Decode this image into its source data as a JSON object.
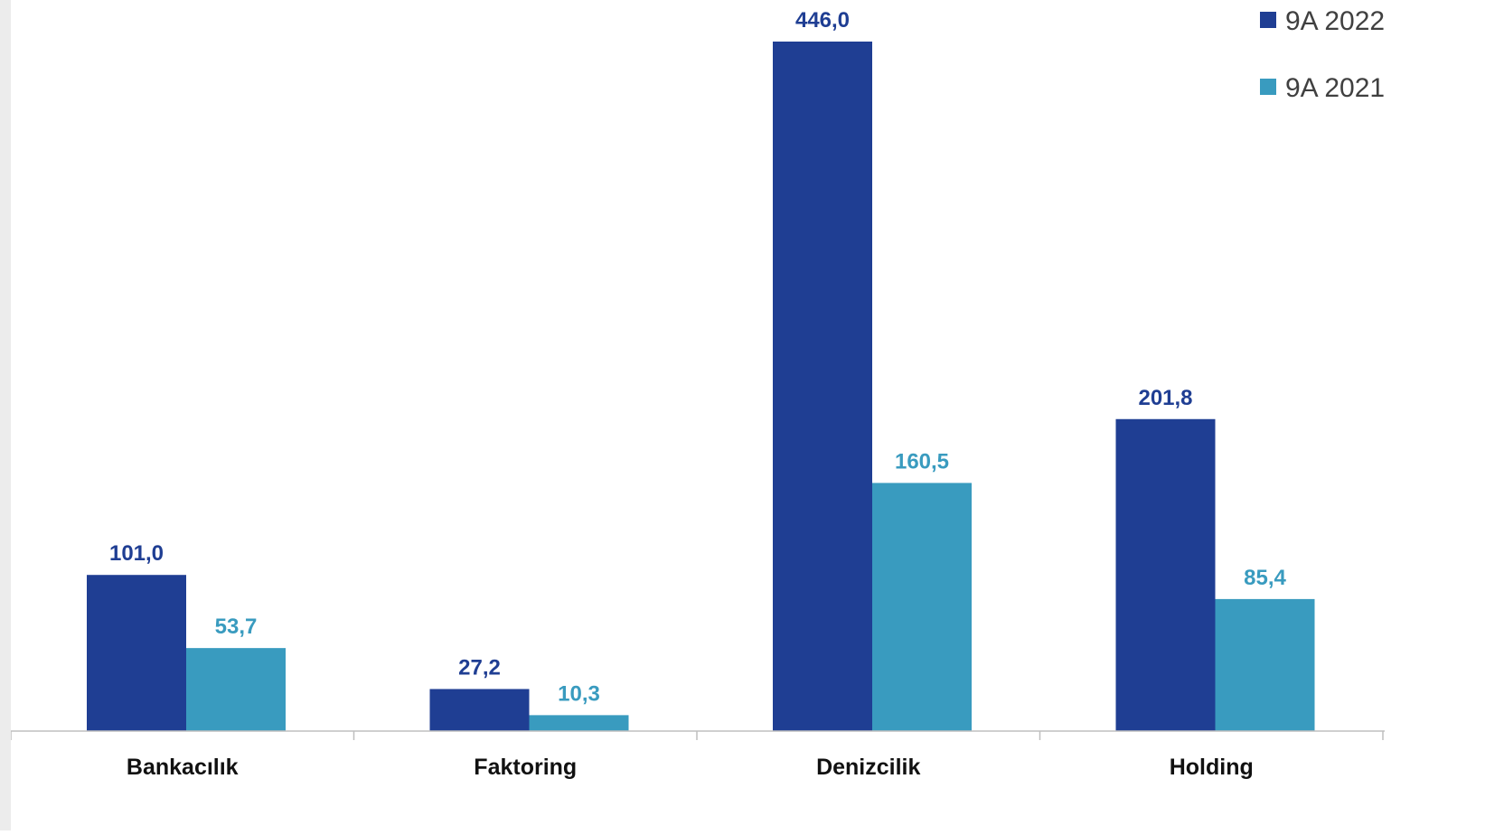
{
  "chart_data": {
    "type": "bar",
    "title": "",
    "xlabel": "",
    "ylabel": "",
    "categories": [
      "Bankacılık",
      "Faktoring",
      "Denizcilik",
      "Holding"
    ],
    "series": [
      {
        "name": "9A 2022",
        "values": [
          101.0,
          27.2,
          446.0,
          201.8
        ],
        "labels": [
          "101,0",
          "27,2",
          "446,0",
          "201,8"
        ],
        "color": "#1f3e93"
      },
      {
        "name": "9A 2021",
        "values": [
          53.7,
          10.3,
          160.5,
          85.4
        ],
        "labels": [
          "53,7",
          "10,3",
          "160,5",
          "85,4"
        ],
        "color": "#399bbf"
      }
    ],
    "ylim": [
      0,
      446
    ],
    "grid": false,
    "legend_position": "top-right",
    "axis_color": "#bfbfbf",
    "category_label_color": "#111111"
  }
}
